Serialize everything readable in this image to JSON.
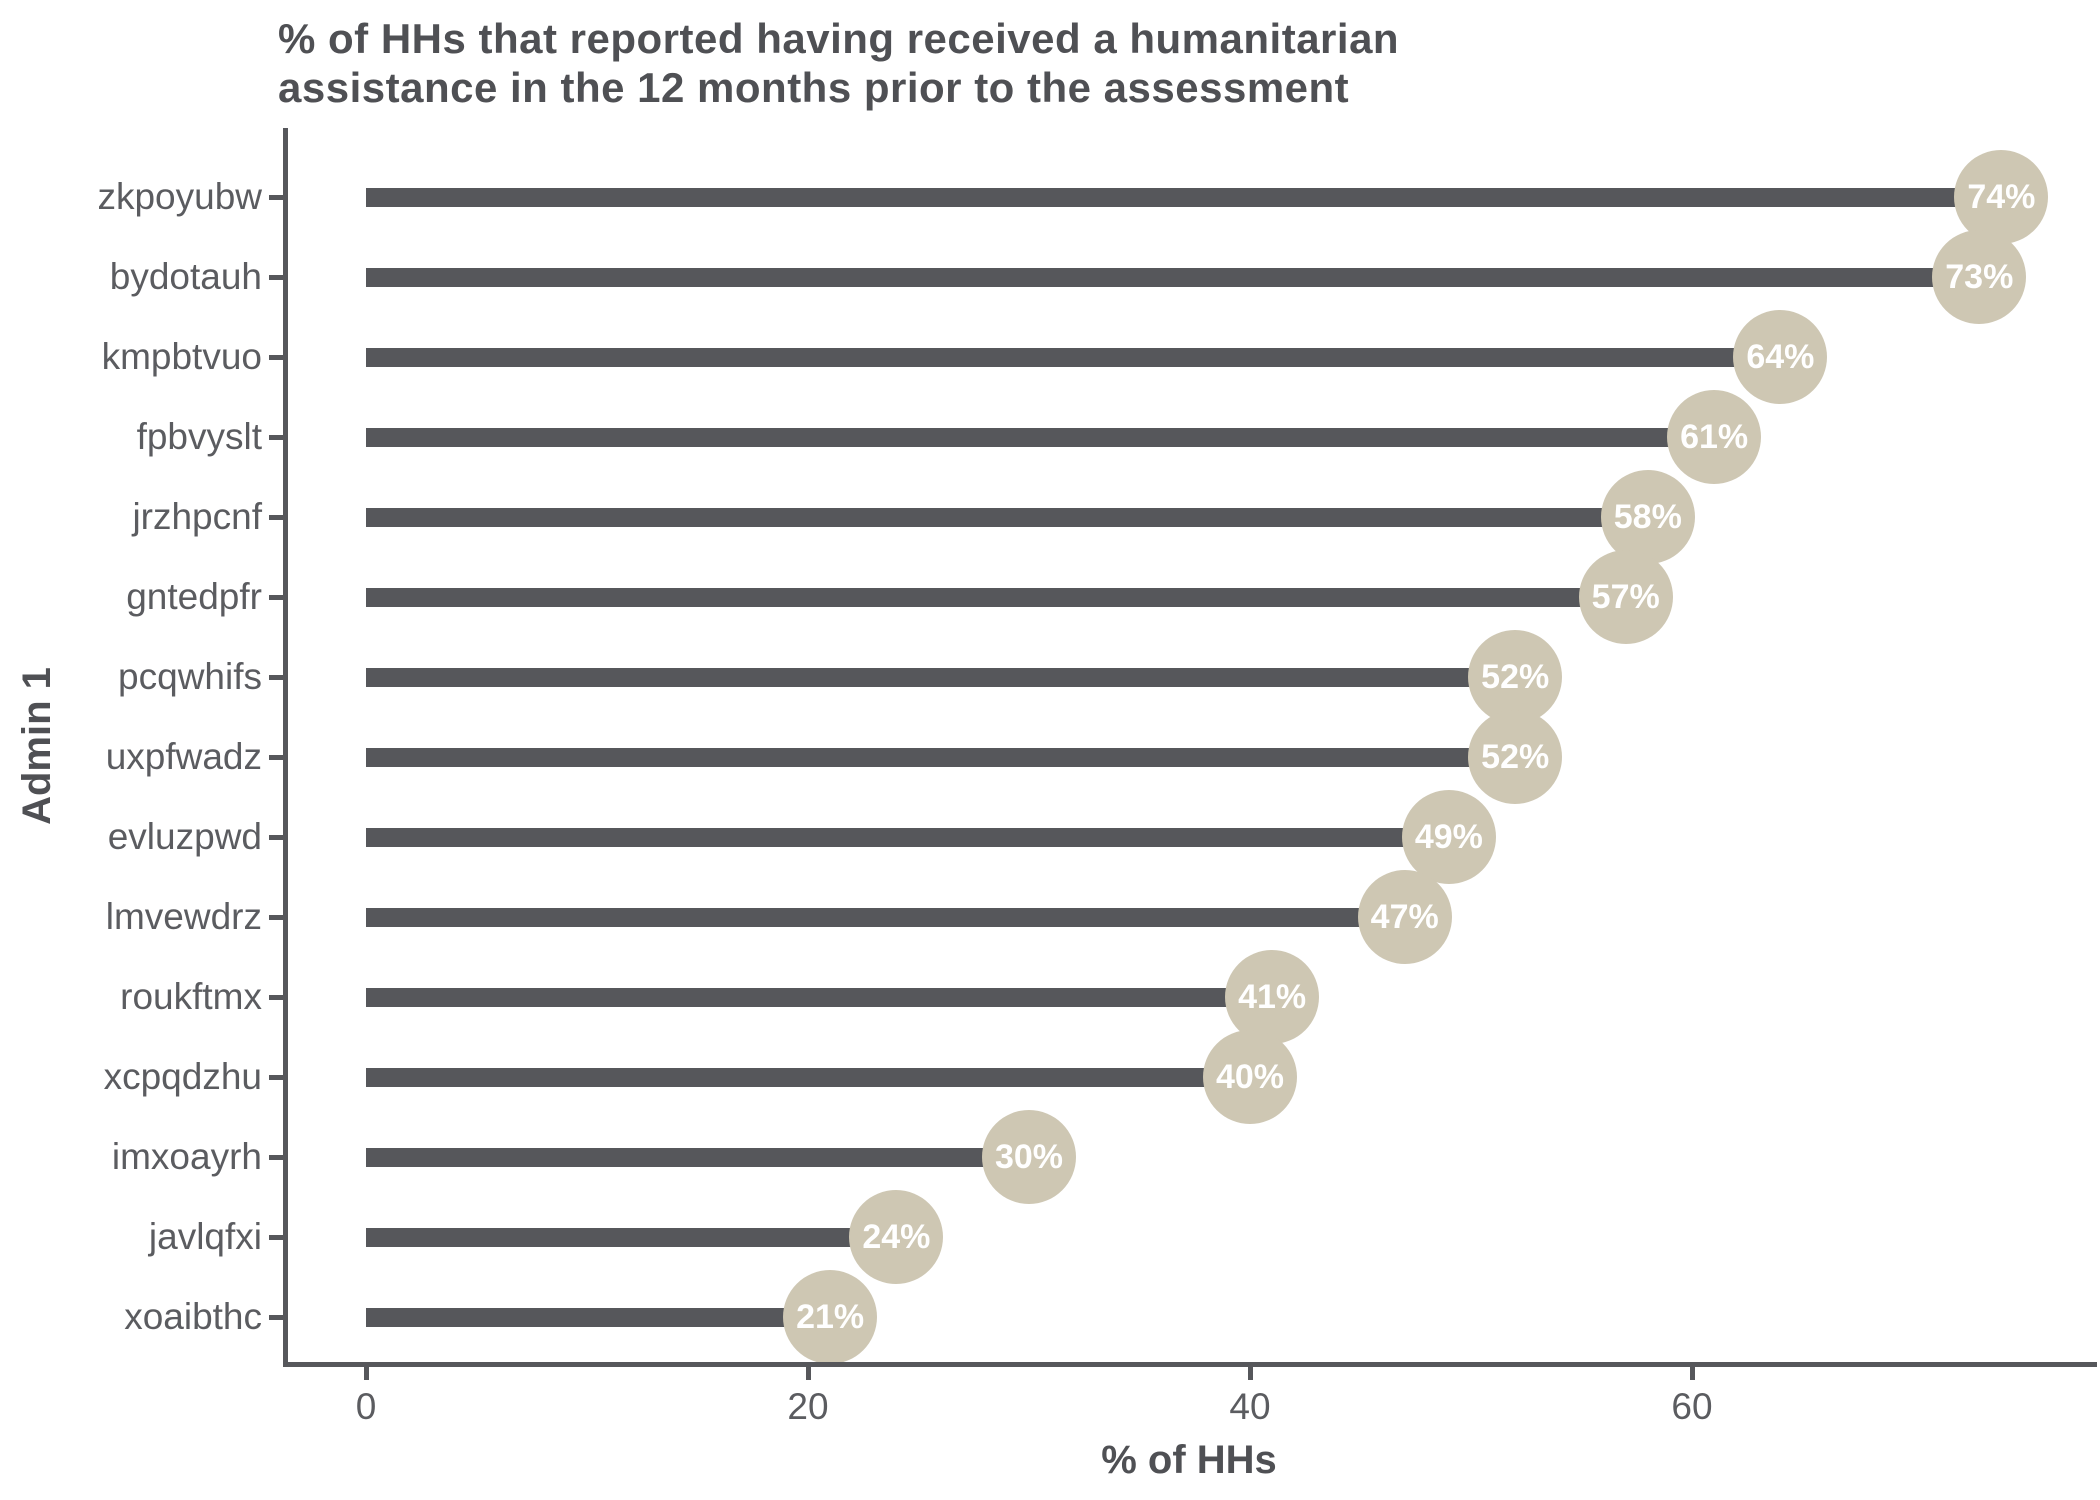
{
  "title": "% of HHs that reported having received a humanitarian assistance in the 12 months prior to the assessment",
  "title_lines": [
    "% of HHs that reported having received a humanitarian",
    "assistance in the 12 months prior to the assessment"
  ],
  "chart_data": {
    "type": "bar",
    "orientation": "horizontal",
    "title": "% of HHs that reported having received a humanitarian assistance in the 12 months prior to the assessment",
    "xlabel": "% of HHs",
    "ylabel": "Admin 1",
    "categories": [
      "zkpoyubw",
      "bydotauh",
      "kmpbtvuo",
      "fpbvyslt",
      "jrzhpcnf",
      "gntedpfr",
      "pcqwhifs",
      "uxpfwadz",
      "evluzpwd",
      "lmvewdrz",
      "roukftmx",
      "xcpqdzhu",
      "imxoayrh",
      "javlqfxi",
      "xoaibthc"
    ],
    "values": [
      74,
      73,
      64,
      61,
      58,
      57,
      52,
      52,
      49,
      47,
      41,
      40,
      30,
      24,
      21
    ],
    "value_labels": [
      "74%",
      "73%",
      "64%",
      "61%",
      "58%",
      "57%",
      "52%",
      "52%",
      "49%",
      "47%",
      "41%",
      "40%",
      "30%",
      "24%",
      "21%"
    ],
    "x_ticks": [
      0,
      20,
      40,
      60
    ],
    "x_tick_labels": [
      "0",
      "20",
      "40",
      "60"
    ],
    "xlim": [
      0,
      78
    ],
    "grid": false,
    "legend": false,
    "marker": "circle-with-label",
    "colors": {
      "bar": "#56575B",
      "bubble": "#CEC7B3",
      "bubble_text": "#FFFFFF",
      "axis": "#56575B",
      "tick_text": "#5B5C60",
      "title_text": "#4F5054",
      "background": "#FFFFFF"
    }
  }
}
